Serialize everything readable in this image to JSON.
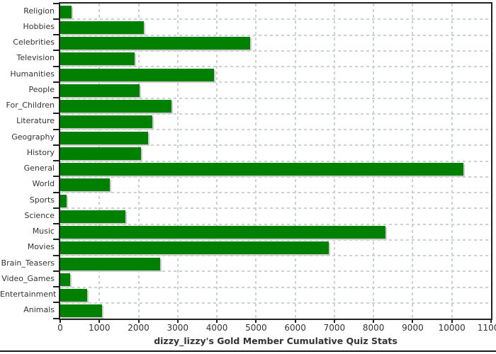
{
  "title": "dizzy_lizzy's Gold Member Cumulative Quiz Stats",
  "colors": {
    "bar": "#008000",
    "bar_shadow": "#cccccc",
    "gridline": "#ccd2d2",
    "axis": "#222222",
    "tick_label": "#333333",
    "title_text": "#333333",
    "plot_background": "#ffffff"
  },
  "chart_data": {
    "type": "bar",
    "orientation": "horizontal",
    "title": "dizzy_lizzy's Gold Member Cumulative Quiz Stats",
    "xlabel": "",
    "ylabel": "",
    "categories": [
      "Religion",
      "Hobbies",
      "Celebrities",
      "Television",
      "Humanities",
      "People",
      "For_Children",
      "Literature",
      "Geography",
      "History",
      "General",
      "World",
      "Sports",
      "Science",
      "Music",
      "Movies",
      "Brain_Teasers",
      "Video_Games",
      "Entertainment",
      "Animals"
    ],
    "values": [
      285,
      2140,
      4840,
      1900,
      3920,
      2020,
      2835,
      2355,
      2250,
      2070,
      10300,
      1265,
      160,
      1670,
      8300,
      6860,
      2560,
      250,
      690,
      1075
    ],
    "xlim": [
      0,
      11000
    ],
    "x_ticks": [
      0,
      1000,
      2000,
      3000,
      4000,
      5000,
      6000,
      7000,
      8000,
      9000,
      10000,
      11000
    ],
    "grid": true,
    "grid_style": "dashed",
    "legend": false
  }
}
